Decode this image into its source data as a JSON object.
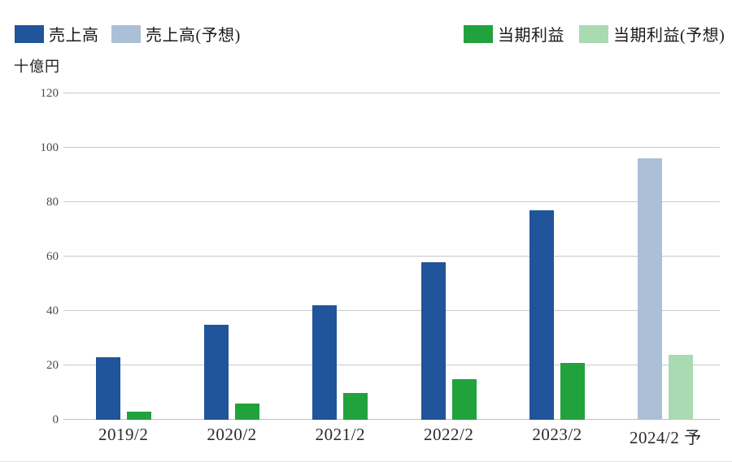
{
  "unit_label": "十億円",
  "chart_data": {
    "type": "bar",
    "title": "",
    "xlabel": "",
    "ylabel": "十億円",
    "categories": [
      "2019/2",
      "2020/2",
      "2021/2",
      "2022/2",
      "2023/2",
      "2024/2 予"
    ],
    "series": [
      {
        "name": "売上高",
        "color": "#20549B",
        "slot": 0,
        "values": [
          23,
          35,
          42,
          58,
          77,
          null
        ]
      },
      {
        "name": "売上高(予想)",
        "color": "#ABBFD7",
        "slot": 0,
        "values": [
          null,
          null,
          null,
          null,
          null,
          96
        ]
      },
      {
        "name": "当期利益",
        "color": "#22A23D",
        "slot": 1,
        "values": [
          3,
          6,
          10,
          15,
          21,
          null
        ]
      },
      {
        "name": "当期利益(予想)",
        "color": "#AADAB1",
        "slot": 1,
        "values": [
          null,
          null,
          null,
          null,
          null,
          24
        ]
      }
    ],
    "yticks": [
      0,
      20,
      40,
      60,
      80,
      100,
      120
    ],
    "ylim": [
      0,
      120
    ],
    "grid": true,
    "legend_position": "top"
  }
}
